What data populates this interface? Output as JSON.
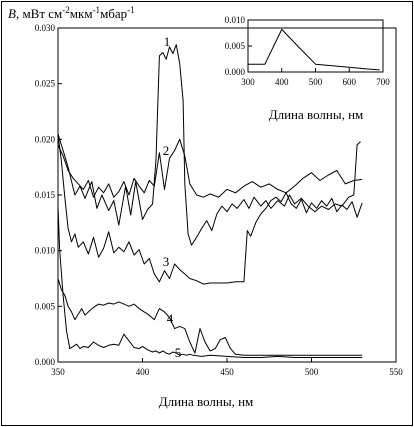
{
  "chart_data": [
    {
      "type": "line",
      "ylabel_italic": "B",
      "ylabel_rest": ", мВт см",
      "ylabel_sup1": "-2",
      "ylabel_mid": "мкм",
      "ylabel_sup2": "-1",
      "ylabel_end": "мбар",
      "ylabel_sup3": "-1",
      "xlabel": "Длина волны, нм",
      "xlim": [
        350,
        550
      ],
      "ylim": [
        0,
        0.03
      ],
      "xticks": [
        "350",
        "400",
        "450",
        "500",
        "550"
      ],
      "yticks": [
        "0.000",
        "0.005",
        "0.010",
        "0.015",
        "0.020",
        "0.025",
        "0.030"
      ],
      "series": [
        {
          "name": "1",
          "x": [
            350,
            353,
            356,
            360,
            363,
            366,
            370,
            373,
            376,
            380,
            383,
            386,
            390,
            393,
            396,
            400,
            403,
            406,
            408,
            410,
            412,
            414,
            416,
            418,
            420,
            422,
            424,
            425,
            427,
            429,
            432,
            435,
            438,
            441,
            444,
            447,
            450,
            453,
            456,
            460,
            463,
            466,
            470,
            473,
            476,
            480,
            484,
            487,
            490,
            494,
            498,
            502,
            506,
            510,
            514,
            518,
            522,
            525,
            527,
            529
          ],
          "values": [
            0.0205,
            0.019,
            0.0175,
            0.015,
            0.0158,
            0.0147,
            0.0162,
            0.0138,
            0.015,
            0.0136,
            0.0145,
            0.0123,
            0.0158,
            0.0132,
            0.0162,
            0.0128,
            0.0137,
            0.0142,
            0.0182,
            0.0275,
            0.0278,
            0.0272,
            0.0283,
            0.0277,
            0.0285,
            0.0268,
            0.0235,
            0.016,
            0.0115,
            0.0105,
            0.0112,
            0.012,
            0.0127,
            0.0118,
            0.0133,
            0.014,
            0.0135,
            0.0142,
            0.0138,
            0.0146,
            0.0138,
            0.0148,
            0.014,
            0.0145,
            0.0138,
            0.0145,
            0.014,
            0.015,
            0.0142,
            0.0147,
            0.014,
            0.0135,
            0.014,
            0.0137,
            0.0142,
            0.014,
            0.0148,
            0.015,
            0.0195,
            0.0198
          ]
        },
        {
          "name": "2",
          "x": [
            350,
            353,
            356,
            359,
            362,
            365,
            368,
            371,
            374,
            377,
            380,
            383,
            386,
            389,
            392,
            395,
            398,
            401,
            404,
            407,
            410,
            413,
            416,
            419,
            422,
            425,
            428,
            432,
            436,
            440,
            445,
            450,
            455,
            460,
            465,
            470,
            475,
            480,
            485,
            490,
            495,
            500,
            505,
            510,
            515,
            520,
            525,
            530
          ],
          "values": [
            0.0195,
            0.0185,
            0.0172,
            0.0165,
            0.016,
            0.0155,
            0.0163,
            0.0148,
            0.0157,
            0.0152,
            0.016,
            0.0148,
            0.0153,
            0.0162,
            0.015,
            0.0165,
            0.0158,
            0.0152,
            0.0163,
            0.0158,
            0.0188,
            0.0155,
            0.0183,
            0.019,
            0.02,
            0.0185,
            0.016,
            0.015,
            0.0148,
            0.0151,
            0.0148,
            0.0155,
            0.0152,
            0.0158,
            0.0162,
            0.0157,
            0.016,
            0.0155,
            0.0152,
            0.0158,
            0.0165,
            0.017,
            0.0163,
            0.0168,
            0.0172,
            0.016,
            0.0163,
            0.0164
          ]
        },
        {
          "name": "3",
          "x": [
            350,
            352,
            354,
            356,
            358,
            360,
            362,
            365,
            368,
            371,
            374,
            377,
            380,
            383,
            386,
            389,
            392,
            395,
            398,
            401,
            404,
            407,
            410,
            413,
            416,
            419,
            422,
            425,
            428,
            432,
            436,
            440,
            445,
            450,
            455,
            460,
            462,
            464,
            467,
            470,
            473,
            476,
            479,
            482,
            485,
            488,
            491,
            494,
            497,
            500,
            503,
            506,
            509,
            512,
            515,
            518,
            521,
            524,
            527,
            530
          ],
          "values": [
            0.0205,
            0.018,
            0.0148,
            0.012,
            0.0108,
            0.0115,
            0.0103,
            0.0108,
            0.0097,
            0.0112,
            0.0094,
            0.0102,
            0.0117,
            0.0098,
            0.0103,
            0.0099,
            0.0108,
            0.0096,
            0.0101,
            0.0088,
            0.0093,
            0.0079,
            0.0072,
            0.0082,
            0.0075,
            0.0088,
            0.0083,
            0.0079,
            0.0075,
            0.0073,
            0.007,
            0.0071,
            0.0071,
            0.0071,
            0.0072,
            0.0072,
            0.0118,
            0.0113,
            0.0125,
            0.0133,
            0.0138,
            0.0145,
            0.0148,
            0.0144,
            0.0152,
            0.0142,
            0.0138,
            0.0146,
            0.0134,
            0.0143,
            0.0138,
            0.0145,
            0.014,
            0.0147,
            0.0135,
            0.0141,
            0.0137,
            0.0144,
            0.013,
            0.0143
          ]
        },
        {
          "name": "4",
          "x": [
            350,
            352,
            354,
            356,
            358,
            360,
            362,
            364,
            366,
            368,
            371,
            374,
            377,
            380,
            383,
            386,
            389,
            392,
            395,
            398,
            401,
            404,
            407,
            410,
            413,
            416,
            419,
            422,
            425,
            428,
            431,
            434,
            437,
            440,
            443,
            446,
            449,
            452,
            455,
            460,
            470,
            480,
            490,
            500,
            510,
            520,
            530
          ],
          "values": [
            0.0075,
            0.0065,
            0.006,
            0.005,
            0.0045,
            0.0038,
            0.0043,
            0.0048,
            0.0042,
            0.0045,
            0.0049,
            0.0052,
            0.0051,
            0.0053,
            0.0052,
            0.0054,
            0.0052,
            0.005,
            0.0052,
            0.0048,
            0.0045,
            0.0042,
            0.0038,
            0.0048,
            0.0045,
            0.004,
            0.003,
            0.0032,
            0.003,
            0.0018,
            0.0008,
            0.003,
            0.0018,
            0.001,
            0.0012,
            0.002,
            0.0022,
            0.0012,
            0.0007,
            0.0006,
            0.0006,
            0.0006,
            0.0006,
            0.0006,
            0.0006,
            0.0006,
            0.0006
          ]
        },
        {
          "name": "5",
          "x": [
            350,
            351,
            353,
            355,
            357,
            359,
            361,
            363,
            365,
            368,
            371,
            374,
            377,
            380,
            383,
            386,
            389,
            392,
            395,
            398,
            400,
            403,
            406,
            408,
            410,
            412,
            414,
            416,
            418,
            420,
            422,
            424,
            426,
            428,
            430,
            435,
            440,
            450,
            460,
            470,
            480,
            490,
            500,
            510,
            520,
            530
          ],
          "values": [
            0.014,
            0.01,
            0.006,
            0.0028,
            0.0012,
            0.0014,
            0.0016,
            0.0012,
            0.0014,
            0.0013,
            0.0018,
            0.0015,
            0.0013,
            0.0015,
            0.0016,
            0.0015,
            0.0025,
            0.0019,
            0.0013,
            0.0012,
            0.0014,
            0.0011,
            0.0009,
            0.001,
            0.0008,
            0.001,
            0.0008,
            0.0007,
            0.0009,
            0.0008,
            0.0006,
            0.0007,
            0.0006,
            0.0007,
            0.0006,
            0.0005,
            0.0006,
            0.0005,
            0.0004,
            0.0004,
            0.0005,
            0.0004,
            0.0004,
            0.0004,
            0.0004,
            0.0004
          ]
        }
      ]
    },
    {
      "type": "line",
      "xlabel": "Длина волны, нм",
      "xlim": [
        300,
        700
      ],
      "ylim": [
        0,
        0.01
      ],
      "xticks": [
        "300",
        "400",
        "500",
        "600",
        "700"
      ],
      "yticks": [
        "0.000",
        "0.005",
        "0.010"
      ],
      "series": [
        {
          "x": [
            300,
            350,
            400,
            450,
            500,
            550,
            600,
            650,
            690
          ],
          "values": [
            0.0015,
            0.0015,
            0.0082,
            0.0048,
            0.0015,
            0.0012,
            0.0009,
            0.0006,
            0.0004
          ]
        }
      ]
    }
  ]
}
